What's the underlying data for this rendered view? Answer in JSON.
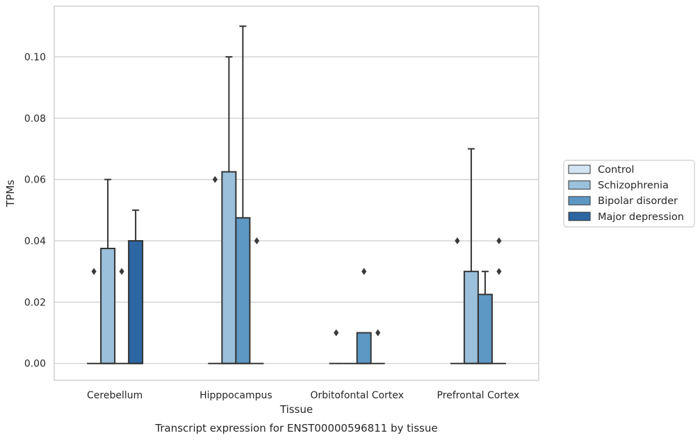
{
  "chart_data": {
    "type": "box",
    "title": "Transcript expression for ENST00000596811 by tissue",
    "xlabel": "Tissue",
    "ylabel": "TPMs",
    "ylim": [
      -0.0055,
      0.1165
    ],
    "yticks": [
      0.0,
      0.02,
      0.04,
      0.06,
      0.08,
      0.1
    ],
    "ytick_labels": [
      "0.00",
      "0.02",
      "0.04",
      "0.06",
      "0.08",
      "0.10"
    ],
    "categories": [
      "Cerebellum",
      "Hipppocampus",
      "Orbitofontal Cortex",
      "Prefrontal Cortex"
    ],
    "grid": "horizontal",
    "legend_position": "right",
    "series": [
      {
        "name": "Control",
        "color": "#d3e4f3",
        "boxes": [
          {
            "q1": 0,
            "median": 0,
            "q3": 0,
            "whisker_low": 0,
            "whisker_high": 0,
            "outliers": [
              0.03
            ]
          },
          {
            "q1": 0,
            "median": 0,
            "q3": 0,
            "whisker_low": 0,
            "whisker_high": 0,
            "outliers": [
              0.06
            ]
          },
          {
            "q1": 0,
            "median": 0,
            "q3": 0,
            "whisker_low": 0,
            "whisker_high": 0,
            "outliers": [
              0.01
            ]
          },
          {
            "q1": 0,
            "median": 0,
            "q3": 0,
            "whisker_low": 0,
            "whisker_high": 0,
            "outliers": [
              0.04
            ]
          }
        ]
      },
      {
        "name": "Schizophrenia",
        "color": "#9ac0dc",
        "boxes": [
          {
            "q1": 0,
            "median": 0,
            "q3": 0.0375,
            "whisker_low": 0,
            "whisker_high": 0.06,
            "outliers": []
          },
          {
            "q1": 0,
            "median": 0,
            "q3": 0.0625,
            "whisker_low": 0,
            "whisker_high": 0.1,
            "outliers": []
          },
          {
            "q1": 0,
            "median": 0,
            "q3": 0,
            "whisker_low": 0,
            "whisker_high": 0,
            "outliers": []
          },
          {
            "q1": 0,
            "median": 0,
            "q3": 0.03,
            "whisker_low": 0,
            "whisker_high": 0.07,
            "outliers": []
          }
        ]
      },
      {
        "name": "Bipolar disorder",
        "color": "#5d98c4",
        "boxes": [
          {
            "q1": 0,
            "median": 0,
            "q3": 0,
            "whisker_low": 0,
            "whisker_high": 0,
            "outliers": [
              0.03
            ]
          },
          {
            "q1": 0,
            "median": 0,
            "q3": 0.0475,
            "whisker_low": 0,
            "whisker_high": 0.11,
            "outliers": []
          },
          {
            "q1": 0,
            "median": 0,
            "q3": 0.01,
            "whisker_low": 0,
            "whisker_high": 0.01,
            "outliers": [
              0.03
            ]
          },
          {
            "q1": 0,
            "median": 0,
            "q3": 0.0225,
            "whisker_low": 0,
            "whisker_high": 0.03,
            "outliers": []
          }
        ]
      },
      {
        "name": "Major depression",
        "color": "#2c66a3",
        "boxes": [
          {
            "q1": 0,
            "median": 0,
            "q3": 0.04,
            "whisker_low": 0,
            "whisker_high": 0.05,
            "outliers": []
          },
          {
            "q1": 0,
            "median": 0,
            "q3": 0,
            "whisker_low": 0,
            "whisker_high": 0,
            "outliers": [
              0.04
            ]
          },
          {
            "q1": 0,
            "median": 0,
            "q3": 0,
            "whisker_low": 0,
            "whisker_high": 0,
            "outliers": [
              0.01
            ]
          },
          {
            "q1": 0,
            "median": 0,
            "q3": 0,
            "whisker_low": 0,
            "whisker_high": 0,
            "outliers": [
              0.04,
              0.03
            ]
          }
        ]
      }
    ]
  }
}
